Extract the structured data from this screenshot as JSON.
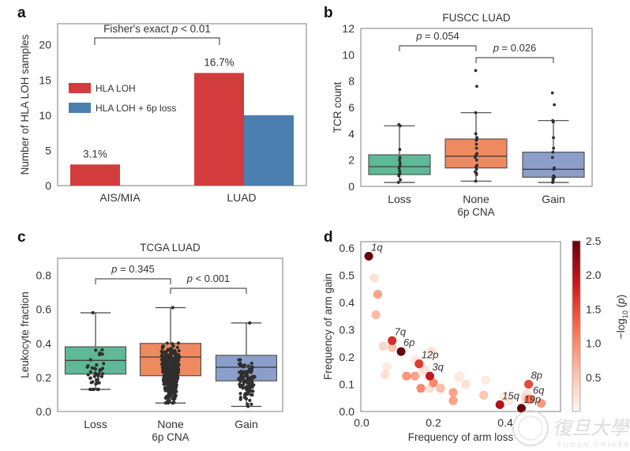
{
  "figure": {
    "watermark": {
      "chinese": "復旦大學",
      "english": "FUDAN UNIVERSITY"
    }
  },
  "chart_data": [
    {
      "panel": "a",
      "type": "bar",
      "title": "",
      "ylabel": "Number of HLA LOH samples",
      "xlabel": "",
      "ylim": [
        0,
        23
      ],
      "yticks": [
        0,
        5,
        10,
        15,
        20
      ],
      "categories": [
        "AIS/MIA",
        "LUAD"
      ],
      "series": [
        {
          "name": "HLA LOH",
          "color": "#d23c3c",
          "values": [
            3,
            16
          ]
        },
        {
          "name": "HLA LOH + 6p loss",
          "color": "#4a7fb0",
          "values": [
            0,
            10
          ]
        }
      ],
      "bar_labels": [
        "3.1%",
        "16.7%"
      ],
      "annotation": {
        "text": "Fisher's exact ",
        "p_symbol": "p",
        "rest": " < 0.01"
      },
      "legend_placement": "center-left"
    },
    {
      "panel": "b",
      "type": "box",
      "title": "FUSCC LUAD",
      "ylabel": "TCR count",
      "xlabel": "6p CNA",
      "ylim": [
        0,
        12
      ],
      "yticks": [
        0,
        2,
        4,
        6,
        8,
        10,
        12
      ],
      "categories": [
        "Loss",
        "None",
        "Gain"
      ],
      "colors": [
        "#5fb898",
        "#ee8a5f",
        "#8b9fca"
      ],
      "boxes": [
        {
          "whislo": 0.3,
          "q1": 0.9,
          "med": 1.5,
          "q3": 2.4,
          "whishi": 4.6,
          "points": [
            0.3,
            0.5,
            0.8,
            0.9,
            1.0,
            1.2,
            1.4,
            1.6,
            1.8,
            2.0,
            2.2,
            2.8,
            4.6,
            4.7
          ]
        },
        {
          "whislo": 0.4,
          "q1": 1.4,
          "med": 2.3,
          "q3": 3.6,
          "whishi": 5.6,
          "points": [
            0.4,
            0.9,
            1.0,
            1.1,
            1.3,
            1.5,
            1.6,
            2.0,
            2.2,
            2.4,
            2.5,
            2.9,
            3.2,
            3.5,
            3.6,
            3.7,
            4.0,
            5.6,
            7.6,
            8.8
          ]
        },
        {
          "whislo": 0.3,
          "q1": 0.7,
          "med": 1.3,
          "q3": 2.6,
          "whishi": 5.0,
          "points": [
            0.3,
            0.4,
            0.5,
            0.6,
            0.7,
            0.8,
            1.3,
            1.4,
            2.2,
            2.6,
            2.9,
            3.7,
            4.9,
            5.0,
            6.2,
            7.1
          ]
        }
      ],
      "comparisons": [
        {
          "groups": [
            "Loss",
            "None"
          ],
          "p_symbol": "p",
          "text": " = 0.054"
        },
        {
          "groups": [
            "None",
            "Gain"
          ],
          "p_symbol": "p",
          "text": " = 0.026"
        }
      ]
    },
    {
      "panel": "c",
      "type": "box",
      "title": "TCGA LUAD",
      "ylabel": "Leukocyte fraction",
      "xlabel": "6p CNA",
      "ylim": [
        0,
        0.9
      ],
      "yticks": [
        0.0,
        0.2,
        0.4,
        0.6,
        0.8
      ],
      "ytick_labels": [
        "0.0",
        "0.2",
        "0.4",
        "0.6",
        "0.8"
      ],
      "categories": [
        "Loss",
        "None",
        "Gain"
      ],
      "colors": [
        "#5fb898",
        "#ee8a5f",
        "#8b9fca"
      ],
      "boxes": [
        {
          "whislo": 0.13,
          "q1": 0.22,
          "med": 0.3,
          "q3": 0.38,
          "whishi": 0.58,
          "n_points": 40
        },
        {
          "whislo": 0.05,
          "q1": 0.21,
          "med": 0.32,
          "q3": 0.4,
          "whishi": 0.61,
          "n_points": 420
        },
        {
          "whislo": 0.03,
          "q1": 0.18,
          "med": 0.26,
          "q3": 0.33,
          "whishi": 0.52,
          "n_points": 110
        }
      ],
      "comparisons": [
        {
          "groups": [
            "Loss",
            "None"
          ],
          "p_symbol": "p",
          "text": " = 0.345"
        },
        {
          "groups": [
            "None",
            "Gain"
          ],
          "p_symbol": "p",
          "text": " < 0.001"
        }
      ]
    },
    {
      "panel": "d",
      "type": "scatter",
      "title": "",
      "xlabel": "Frequency of arm loss",
      "ylabel": "Frequency of arm gain",
      "xlim": [
        0,
        0.56
      ],
      "ylim": [
        0,
        0.62
      ],
      "xticks": [
        0.0,
        0.2,
        0.4
      ],
      "xtick_labels": [
        "0.0",
        "0.2",
        "0.4"
      ],
      "yticks": [
        0.0,
        0.1,
        0.2,
        0.3,
        0.4,
        0.5,
        0.6
      ],
      "ytick_labels": [
        "0.0",
        "0.1",
        "0.2",
        "0.3",
        "0.4",
        "0.5",
        "0.6"
      ],
      "colorbar": {
        "label_prefix": "−log",
        "label_sub": "10",
        "label_suffix": " (p)",
        "range": [
          0,
          2.5
        ],
        "ticks": [
          0.5,
          1.0,
          1.5,
          2.0,
          2.5
        ],
        "tick_labels": [
          "0.5",
          "1.0",
          "1.5",
          "2.0",
          "2.5"
        ],
        "colors": [
          "#fff5f0",
          "#fcbba1",
          "#fb6a4a",
          "#cb181d",
          "#67000d"
        ]
      },
      "points": [
        {
          "x": 0.02,
          "y": 0.57,
          "c": 2.5,
          "label": "1q"
        },
        {
          "x": 0.035,
          "y": 0.49,
          "c": 0.2
        },
        {
          "x": 0.045,
          "y": 0.43,
          "c": 0.8
        },
        {
          "x": 0.04,
          "y": 0.355,
          "c": 0.6
        },
        {
          "x": 0.085,
          "y": 0.26,
          "c": 1.7,
          "label": "7q"
        },
        {
          "x": 0.06,
          "y": 0.24,
          "c": 0.3
        },
        {
          "x": 0.085,
          "y": 0.235,
          "c": 0.5
        },
        {
          "x": 0.11,
          "y": 0.22,
          "c": 2.5,
          "label": "6p"
        },
        {
          "x": 0.07,
          "y": 0.165,
          "c": 0.1
        },
        {
          "x": 0.065,
          "y": 0.135,
          "c": 0.2
        },
        {
          "x": 0.15,
          "y": 0.19,
          "c": 0.1
        },
        {
          "x": 0.195,
          "y": 0.22,
          "c": 0.2
        },
        {
          "x": 0.16,
          "y": 0.175,
          "c": 1.6,
          "label": "12p"
        },
        {
          "x": 0.175,
          "y": 0.155,
          "c": 0.2
        },
        {
          "x": 0.165,
          "y": 0.145,
          "c": 0.1
        },
        {
          "x": 0.125,
          "y": 0.13,
          "c": 0.9
        },
        {
          "x": 0.148,
          "y": 0.13,
          "c": 0.8
        },
        {
          "x": 0.19,
          "y": 0.13,
          "c": 1.9,
          "label": "3q"
        },
        {
          "x": 0.2,
          "y": 0.105,
          "c": 1.0
        },
        {
          "x": 0.165,
          "y": 0.085,
          "c": 1.0
        },
        {
          "x": 0.19,
          "y": 0.085,
          "c": 0.2
        },
        {
          "x": 0.22,
          "y": 0.085,
          "c": 0.6
        },
        {
          "x": 0.255,
          "y": 0.07,
          "c": 0.8
        },
        {
          "x": 0.255,
          "y": 0.04,
          "c": 0.8
        },
        {
          "x": 0.27,
          "y": 0.125,
          "c": 0.1
        },
        {
          "x": 0.275,
          "y": 0.13,
          "c": 0.1
        },
        {
          "x": 0.29,
          "y": 0.1,
          "c": 0.2
        },
        {
          "x": 0.345,
          "y": 0.115,
          "c": 0.1
        },
        {
          "x": 0.34,
          "y": 0.06,
          "c": 0.5
        },
        {
          "x": 0.385,
          "y": 0.025,
          "c": 2.0,
          "label": "15q"
        },
        {
          "x": 0.395,
          "y": 0.055,
          "c": 0.1
        },
        {
          "x": 0.41,
          "y": 0.04,
          "c": 0.1
        },
        {
          "x": 0.445,
          "y": 0.012,
          "c": 2.5,
          "label": "19p"
        },
        {
          "x": 0.46,
          "y": 0.065,
          "c": 0.2
        },
        {
          "x": 0.455,
          "y": 0.05,
          "c": 0.3
        },
        {
          "x": 0.465,
          "y": 0.045,
          "c": 1.1
        },
        {
          "x": 0.465,
          "y": 0.1,
          "c": 1.5,
          "label": "8p"
        },
        {
          "x": 0.47,
          "y": 0.045,
          "c": 1.2,
          "label": "6q"
        },
        {
          "x": 0.5,
          "y": 0.03,
          "c": 0.9
        }
      ]
    }
  ]
}
